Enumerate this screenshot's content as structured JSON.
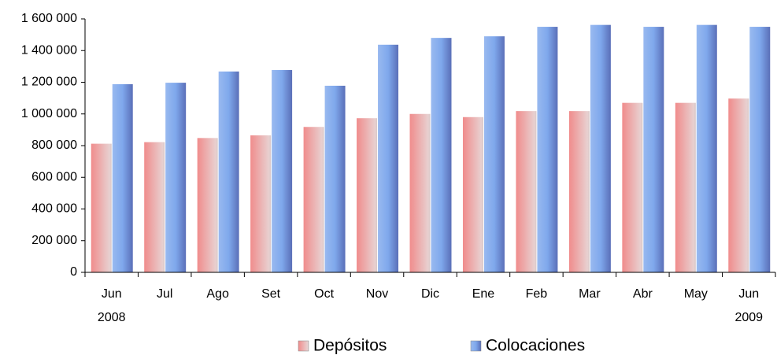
{
  "chart_data": {
    "type": "bar",
    "categories": [
      "Jun",
      "Jul",
      "Ago",
      "Set",
      "Oct",
      "Nov",
      "Dic",
      "Ene",
      "Feb",
      "Mar",
      "Abr",
      "May",
      "Jun"
    ],
    "category_years": [
      "2008",
      null,
      null,
      null,
      null,
      null,
      null,
      null,
      null,
      null,
      null,
      null,
      "2009"
    ],
    "series": [
      {
        "name": "Depósitos",
        "color": "#f08c8c",
        "values": [
          812000,
          822000,
          848000,
          865000,
          918000,
          973000,
          1000000,
          980000,
          1018000,
          1018000,
          1070000,
          1070000,
          1097000
        ]
      },
      {
        "name": "Colocaciones",
        "color": "#7fa8ec",
        "values": [
          1188000,
          1197000,
          1268000,
          1277000,
          1178000,
          1437000,
          1480000,
          1490000,
          1550000,
          1562000,
          1550000,
          1562000,
          1550000
        ]
      }
    ],
    "ylim": [
      0,
      1600000
    ],
    "yticks": [
      0,
      {
        "value": 200000,
        "label": "200 000"
      },
      {
        "value": 400000,
        "label": "400 000"
      },
      {
        "value": 600000,
        "label": "600 000"
      },
      {
        "value": 800000,
        "label": "800 000"
      },
      {
        "value": 1000000,
        "label": "1 000 000"
      },
      {
        "value": 1200000,
        "label": "1 200 000"
      },
      {
        "value": 1400000,
        "label": "1 400 000"
      },
      {
        "value": 1600000,
        "label": "1 600 000"
      }
    ],
    "grid": false,
    "legend": "bottom"
  }
}
